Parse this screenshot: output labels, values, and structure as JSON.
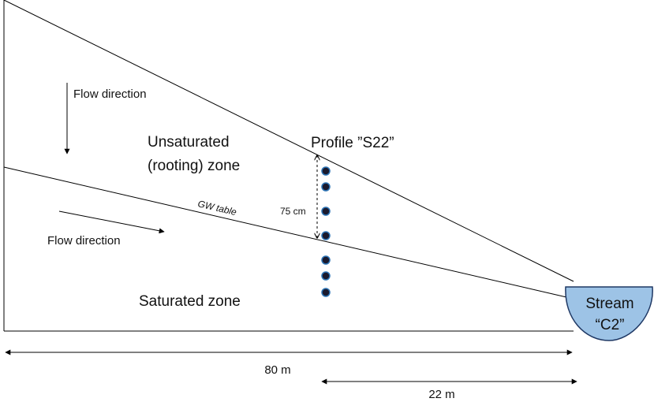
{
  "labels": {
    "flow_direction_top": "Flow direction",
    "unsaturated_line1": "Unsaturated",
    "unsaturated_line2": "(rooting) zone",
    "profile": "Profile ”S22”",
    "gw_table": "GW table",
    "depth": "75 cm",
    "flow_direction_bottom": "Flow direction",
    "saturated": "Saturated zone",
    "stream_line1": "Stream",
    "stream_line2": "“C2”",
    "distance_total": "80 m",
    "distance_profile": "22 m"
  }
}
